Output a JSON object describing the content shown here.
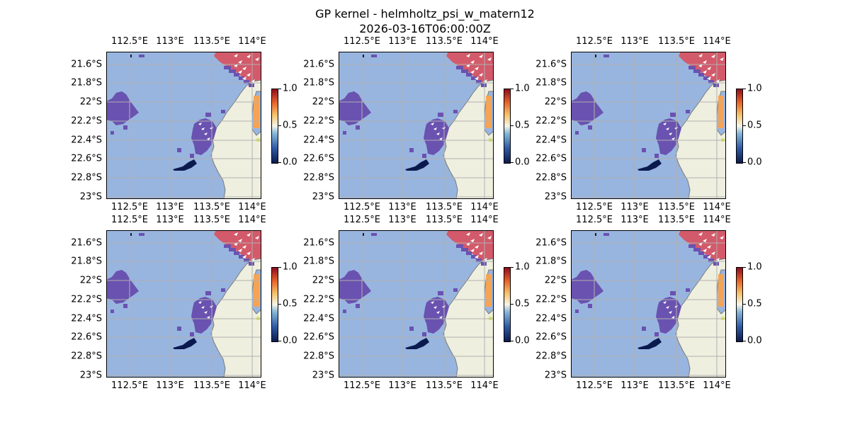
{
  "title": {
    "line1": "GP kernel - helmholtz_psi_w_matern12",
    "line2": "2026-03-16T06:00:00Z"
  },
  "map": {
    "lon_ticks": [
      "112.5°E",
      "113°E",
      "113.5°E",
      "114°E"
    ],
    "lat_ticks": [
      "21.6°S",
      "21.8°S",
      "22°S",
      "22.2°S",
      "22.4°S",
      "22.6°S",
      "22.8°S",
      "23°S"
    ],
    "colors": {
      "ocean": "#98b5e0",
      "land": "#efefdf",
      "coast": "#7a7a7a",
      "grid": "#b0b0b0",
      "purple": "#6a52b0",
      "dark_blue": "#0b1a4e",
      "red": "#d35a6a",
      "orange": "#f5a455"
    }
  },
  "colorbar": {
    "ticks": [
      "1.0",
      "0.5",
      "0.0"
    ]
  },
  "panels": [
    {
      "id": 1
    },
    {
      "id": 2
    },
    {
      "id": 3
    },
    {
      "id": 4
    },
    {
      "id": 5
    },
    {
      "id": 6
    }
  ]
}
